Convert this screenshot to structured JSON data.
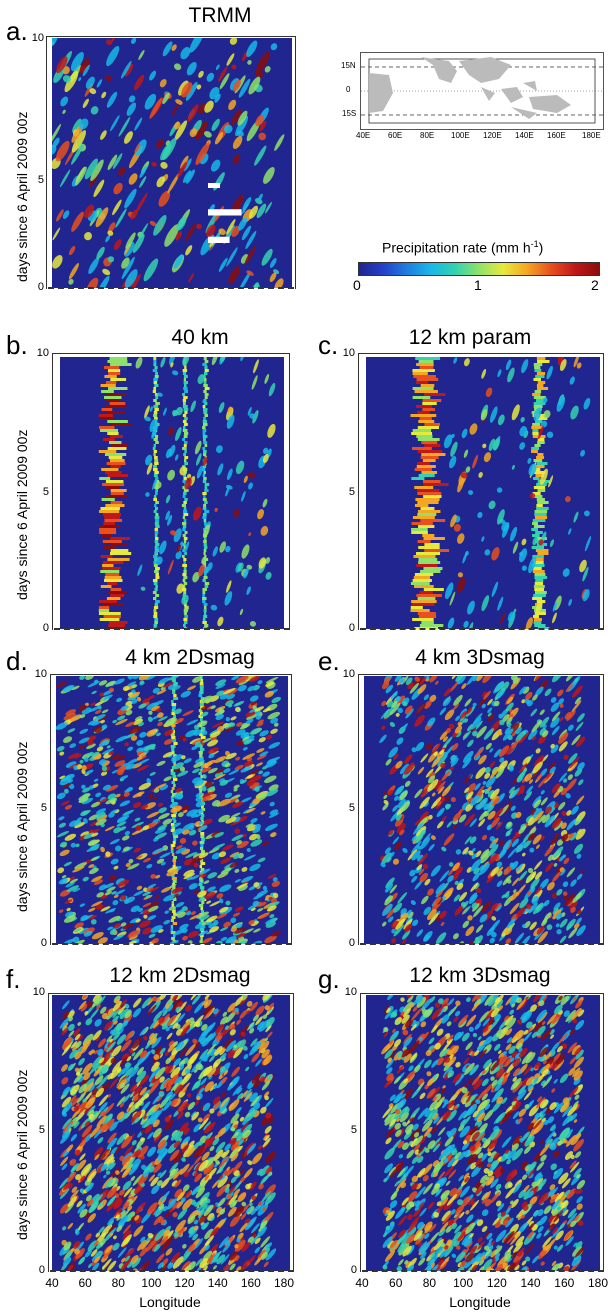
{
  "panels": [
    {
      "id": "a",
      "letter": "a.",
      "title": "TRMM",
      "yticks": [
        "0",
        "5",
        "10"
      ]
    },
    {
      "id": "b",
      "letter": "b.",
      "title": "40 km",
      "yticks": [
        "0",
        "5",
        "10"
      ]
    },
    {
      "id": "c",
      "letter": "c.",
      "title": "12 km param",
      "yticks": [
        "0",
        "5",
        "10"
      ]
    },
    {
      "id": "d",
      "letter": "d.",
      "title": "4 km 2Dsmag",
      "yticks": [
        "0",
        "5",
        "10"
      ]
    },
    {
      "id": "e",
      "letter": "e.",
      "title": "4 km 3Dsmag",
      "yticks": [
        "0",
        "5",
        "10"
      ]
    },
    {
      "id": "f",
      "letter": "f.",
      "title": "12 km 2Dsmag",
      "yticks": [
        "0",
        "5",
        "10"
      ]
    },
    {
      "id": "g",
      "letter": "g.",
      "title": "12 km 3Dsmag",
      "yticks": [
        "0",
        "5",
        "10"
      ]
    }
  ],
  "ylabel": "days since 6 April 2009 00z",
  "xlabel": "Longitude",
  "xticks": [
    "40",
    "60",
    "80",
    "100",
    "120",
    "140",
    "160",
    "180"
  ],
  "map": {
    "lat_labels": [
      "15N",
      "0",
      "15S"
    ],
    "lon_labels": [
      "40E",
      "60E",
      "80E",
      "100E",
      "120E",
      "140E",
      "160E",
      "180E"
    ]
  },
  "colorbar": {
    "title_main": "Precipitation rate (mm h",
    "title_sup": "-1",
    "title_end": ")",
    "ticks": [
      "0",
      "1",
      "2"
    ],
    "colors": [
      "#20258f",
      "#2440c8",
      "#1f7ee0",
      "#18b8e8",
      "#33d2b0",
      "#8ee26a",
      "#e6ea3c",
      "#f5a623",
      "#e8501f",
      "#c01818",
      "#8a0d0d"
    ]
  },
  "chart_data": {
    "type": "heatmap",
    "description_free": true,
    "x_range": [
      40,
      180
    ],
    "y_range": [
      0,
      10
    ],
    "xlabel": "Longitude",
    "ylabel": "days since 6 April 2009 00z",
    "color_range": [
      0,
      2
    ],
    "color_label": "Precipitation rate (mm h-1)",
    "panels": [
      "TRMM",
      "40 km",
      "12 km param",
      "4 km 2Dsmag",
      "4 km 3Dsmag",
      "12 km 2Dsmag",
      "12 km 3Dsmag"
    ]
  }
}
